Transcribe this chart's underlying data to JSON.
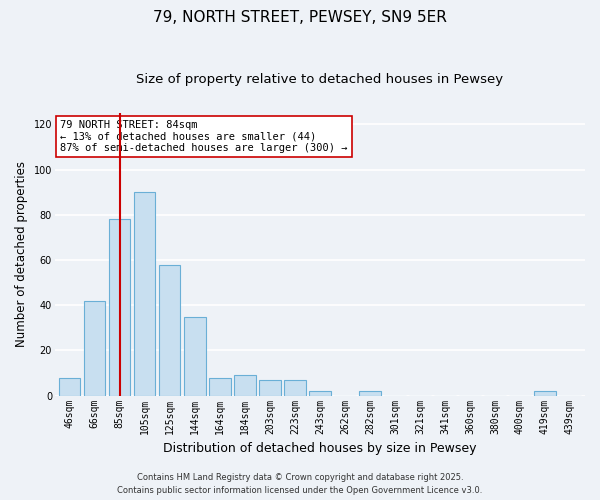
{
  "title": "79, NORTH STREET, PEWSEY, SN9 5ER",
  "subtitle": "Size of property relative to detached houses in Pewsey",
  "xlabel": "Distribution of detached houses by size in Pewsey",
  "ylabel": "Number of detached properties",
  "bar_labels": [
    "46sqm",
    "66sqm",
    "85sqm",
    "105sqm",
    "125sqm",
    "144sqm",
    "164sqm",
    "184sqm",
    "203sqm",
    "223sqm",
    "243sqm",
    "262sqm",
    "282sqm",
    "301sqm",
    "321sqm",
    "341sqm",
    "360sqm",
    "380sqm",
    "400sqm",
    "419sqm",
    "439sqm"
  ],
  "bar_values": [
    8,
    42,
    78,
    90,
    58,
    35,
    8,
    9,
    7,
    7,
    2,
    0,
    2,
    0,
    0,
    0,
    0,
    0,
    0,
    2,
    0
  ],
  "bar_color": "#c8dff0",
  "bar_edge_color": "#6aafd6",
  "vline_x_idx": 2,
  "vline_color": "#cc0000",
  "ylim": [
    0,
    125
  ],
  "yticks": [
    0,
    20,
    40,
    60,
    80,
    100,
    120
  ],
  "annotation_title": "79 NORTH STREET: 84sqm",
  "annotation_line1": "← 13% of detached houses are smaller (44)",
  "annotation_line2": "87% of semi-detached houses are larger (300) →",
  "annotation_box_color": "#cc0000",
  "footer_line1": "Contains HM Land Registry data © Crown copyright and database right 2025.",
  "footer_line2": "Contains public sector information licensed under the Open Government Licence v3.0.",
  "background_color": "#eef2f7",
  "grid_color": "#ffffff",
  "title_fontsize": 11,
  "subtitle_fontsize": 9.5,
  "ylabel_fontsize": 8.5,
  "xlabel_fontsize": 9,
  "tick_fontsize": 7,
  "annotation_fontsize": 7.5,
  "footer_fontsize": 6
}
